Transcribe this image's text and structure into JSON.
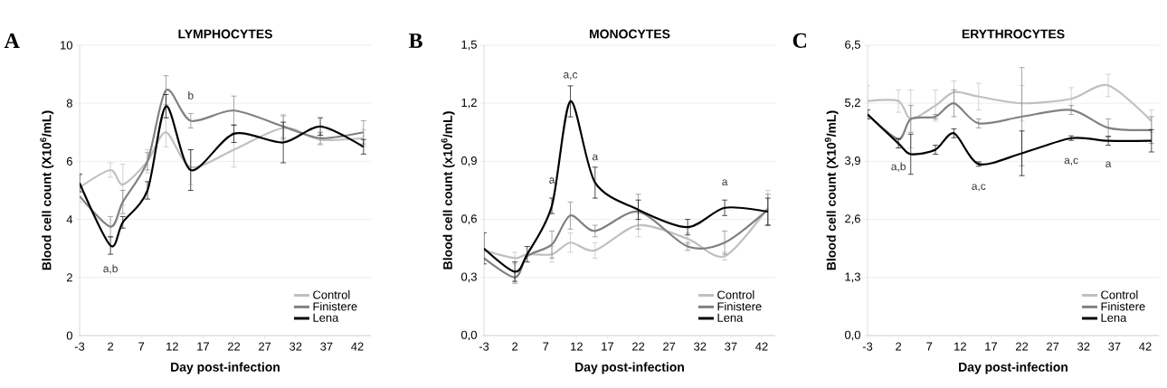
{
  "chart_data": [
    {
      "type": "line",
      "title": "LYMPHOCYTES",
      "xlabel": "Day post-infection",
      "ylabel": "Blood cell count (X10$^{6}$/mL)",
      "x": [
        -3,
        2,
        4,
        8,
        11,
        15,
        22,
        30,
        36,
        43
      ],
      "xlim": [
        -3,
        44.2
      ],
      "xticks": [
        -3,
        2,
        7,
        12,
        17,
        22,
        27,
        32,
        37,
        42
      ],
      "ylim": [
        0,
        10
      ],
      "yticks": [
        0,
        2,
        4,
        6,
        8,
        10
      ],
      "grid": "y",
      "legend": "bottom right",
      "marker": "none",
      "line_style": "solid",
      "series": [
        {
          "name": "Control",
          "color": "#c0c0c0",
          "values": [
            5.1,
            5.7,
            5.2,
            6.0,
            7.0,
            5.8,
            6.4,
            7.15,
            6.75,
            6.8
          ],
          "errors": [
            0.5,
            0.25,
            0.7,
            0.4,
            0.5,
            0.6,
            0.6,
            0.4,
            0.2,
            0.3
          ]
        },
        {
          "name": "Finistere",
          "color": "#808080",
          "values": [
            4.8,
            3.75,
            4.6,
            6.0,
            8.45,
            7.4,
            7.75,
            7.2,
            6.8,
            7.0
          ],
          "errors": [
            null,
            0.35,
            0.4,
            0.3,
            0.5,
            0.25,
            0.5,
            0.4,
            0.2,
            0.4
          ]
        },
        {
          "name": "Lena",
          "color": "#000000",
          "values": [
            5.25,
            3.1,
            3.9,
            5.0,
            7.9,
            5.7,
            6.95,
            6.65,
            7.2,
            6.5
          ],
          "errors": [
            0.3,
            0.3,
            0.2,
            0.3,
            0.4,
            0.7,
            0.3,
            0.7,
            0.3,
            0.25
          ]
        }
      ],
      "annotations": [
        "A",
        {
          "text": "a,b",
          "x": 2,
          "y": 3.1
        },
        {
          "text": "b",
          "x": 15,
          "y": 7.4
        }
      ]
    },
    {
      "type": "line",
      "title": "MONOCYTES",
      "xlabel": "Day post-infection",
      "ylabel": "Blood cell count (x10$^{6}$/mL)",
      "x": [
        -3,
        2,
        4,
        8,
        11,
        15,
        22,
        30,
        36,
        43
      ],
      "xlim": [
        -3,
        44.2
      ],
      "xticks": [
        -3,
        2,
        7,
        12,
        17,
        22,
        27,
        32,
        37,
        42
      ],
      "ylim": [
        0,
        1.5
      ],
      "yticks": [
        {
          "value": 0,
          "label": "0,0"
        },
        {
          "value": 0.3,
          "label": "0,3"
        },
        {
          "value": 0.6,
          "label": "0,6"
        },
        {
          "value": 0.9,
          "label": "0,9"
        },
        {
          "value": 1.2,
          "label": "1,2"
        },
        {
          "value": 1.5,
          "label": "1,5"
        }
      ],
      "grid": "y",
      "legend": "bottom right",
      "marker": "none",
      "line_style": "solid",
      "series": [
        {
          "name": "Control",
          "color": "#c0c0c0",
          "values": [
            0.44,
            0.4,
            0.42,
            0.42,
            0.48,
            0.44,
            0.57,
            0.5,
            0.41,
            0.66
          ],
          "errors": [
            null,
            0.03,
            null,
            0.04,
            0.05,
            0.04,
            0.06,
            0.03,
            0.02,
            0.09
          ]
        },
        {
          "name": "Finistere",
          "color": "#808080",
          "values": [
            0.4,
            0.3,
            0.41,
            0.47,
            0.62,
            0.54,
            0.64,
            0.46,
            0.48,
            0.65
          ],
          "errors": [
            null,
            0.03,
            null,
            0.07,
            0.07,
            0.03,
            0.09,
            0.02,
            0.06,
            0.08
          ]
        },
        {
          "name": "Lena",
          "color": "#000000",
          "values": [
            0.45,
            0.33,
            0.42,
            0.67,
            1.21,
            0.79,
            0.65,
            0.56,
            0.66,
            0.64
          ],
          "errors": [
            0.08,
            0.05,
            0.04,
            0.04,
            0.08,
            0.08,
            0.05,
            0.04,
            0.04,
            0.07
          ]
        }
      ],
      "annotations": [
        "B",
        {
          "text": "a,c",
          "x": 11,
          "y": 1.21
        },
        {
          "text": "a",
          "x": 8,
          "y": 0.67
        },
        {
          "text": "a",
          "x": 15,
          "y": 0.79
        },
        {
          "text": "a",
          "x": 36,
          "y": 0.66
        }
      ]
    },
    {
      "type": "line",
      "title": "ERYTHROCYTES",
      "xlabel": "Day post-infection",
      "ylabel": "Blood cell count (X10$^{9}$/mL)",
      "x": [
        -3,
        2,
        4,
        8,
        11,
        15,
        22,
        30,
        36,
        43
      ],
      "xlim": [
        -3,
        44.2
      ],
      "xticks": [
        -3,
        2,
        7,
        12,
        17,
        22,
        27,
        32,
        37,
        42
      ],
      "ylim": [
        0,
        6.5
      ],
      "yticks": [
        {
          "value": 0,
          "label": "0,0"
        },
        {
          "value": 1.3,
          "label": "1,3"
        },
        {
          "value": 2.6,
          "label": "2,6"
        },
        {
          "value": 3.9,
          "label": "3,9"
        },
        {
          "value": 5.2,
          "label": "5,2"
        },
        {
          "value": 6.5,
          "label": "6,5"
        }
      ],
      "grid": "y",
      "legend": "bottom right",
      "marker": "none",
      "line_style": "solid",
      "series": [
        {
          "name": "Control",
          "color": "#c0c0c0",
          "values": [
            5.25,
            5.25,
            4.85,
            5.15,
            5.45,
            5.35,
            5.2,
            5.3,
            5.6,
            4.8
          ],
          "errors": [
            0.35,
            0.25,
            0.65,
            0.35,
            0.25,
            0.3,
            0.4,
            0.25,
            0.25,
            0.25
          ]
        },
        {
          "name": "Finistere",
          "color": "#808080",
          "values": [
            4.95,
            4.4,
            4.85,
            4.9,
            5.2,
            4.75,
            4.9,
            5.05,
            4.65,
            4.6
          ],
          "errors": [
            null,
            null,
            0.3,
            0.05,
            0.3,
            0.1,
            1.1,
            0.1,
            0.2,
            0.3
          ]
        },
        {
          "name": "Lena",
          "color": "#000000",
          "values": [
            4.95,
            4.3,
            4.06,
            4.16,
            4.53,
            3.84,
            4.08,
            4.42,
            4.36,
            4.36
          ],
          "errors": [
            0.1,
            0.1,
            0.45,
            0.1,
            0.1,
            0.05,
            0.5,
            0.05,
            0.1,
            0.25
          ]
        }
      ],
      "annotations": [
        "C",
        {
          "text": "a,b",
          "x": 2,
          "y": 4.3
        },
        {
          "text": "a,c",
          "x": 15,
          "y": 3.84
        },
        {
          "text": "a,c",
          "x": 30,
          "y": 4.42
        },
        {
          "text": "a",
          "x": 36,
          "y": 4.36
        }
      ]
    }
  ]
}
